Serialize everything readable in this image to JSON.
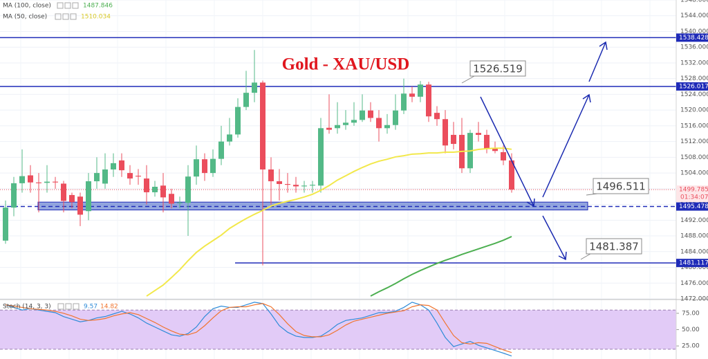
{
  "chart_data": [
    {
      "type": "candlestick",
      "title": "Gold - XAU/USD",
      "open": [
        1486.8,
        1495.2,
        1501.4,
        1503.4,
        1501.6,
        1501.5,
        1501.8,
        1501.3,
        1498.4,
        1498,
        1494.3,
        1501.9,
        1501.3,
        1504.9,
        1507.2,
        1504,
        1503.3,
        1502.6,
        1499.1,
        1500.8,
        1498.7,
        1496.3,
        1496.4,
        1503.1,
        1507.5,
        1504,
        1507.6,
        1512,
        1513.8,
        1520.8,
        1524.4,
        1527,
        1504.9,
        1501.9,
        1501.2,
        1501,
        1500.6,
        1500.8,
        1500.8,
        1515.5,
        1515.4,
        1516.2,
        1516.8,
        1517.5,
        1519.9,
        1518,
        1515.4,
        1516.2,
        1519.9,
        1524.2,
        1523.4,
        1526.5,
        1519.3,
        1517.7,
        1513.7,
        1513.7,
        1505.2,
        1514.2,
        1513.7,
        1510.2,
        1509.3,
        1507.2
      ],
      "high": [
        1497,
        1503,
        1510,
        1506,
        1504,
        1506,
        1503,
        1502,
        1499,
        1499,
        1504,
        1508,
        1509,
        1509,
        1509,
        1506,
        1505,
        1506,
        1502,
        1504,
        1500,
        1498,
        1506,
        1511,
        1509,
        1510,
        1516,
        1518,
        1523,
        1530,
        1535.3,
        1527.5,
        1508,
        1505,
        1504,
        1503,
        1502,
        1502,
        1518,
        1524,
        1522,
        1520,
        1522,
        1524,
        1522,
        1520,
        1519,
        1524,
        1528,
        1526,
        1527.4,
        1527.2,
        1521,
        1520,
        1517,
        1518,
        1515,
        1517,
        1515,
        1512,
        1511,
        1509
      ],
      "low": [
        1486,
        1493,
        1499,
        1499,
        1494,
        1499,
        1500,
        1494,
        1495,
        1490.5,
        1492,
        1500,
        1500,
        1503,
        1503,
        1501,
        1501,
        1496,
        1498,
        1494,
        1495,
        1495,
        1488,
        1501,
        1502,
        1503,
        1506,
        1511,
        1513,
        1520,
        1522,
        1480.5,
        1496,
        1497,
        1499,
        1499,
        1499,
        1499,
        1499,
        1514,
        1514,
        1515,
        1516,
        1517,
        1517,
        1512,
        1514,
        1515,
        1519,
        1522,
        1522,
        1517,
        1516,
        1509,
        1510,
        1504,
        1504,
        1512,
        1509,
        1509,
        1506,
        1499
      ],
      "close": [
        1495.2,
        1501.4,
        1503.2,
        1501.6,
        1501.4,
        1501.8,
        1501.6,
        1496.9,
        1496.6,
        1493.4,
        1501.9,
        1504,
        1504.9,
        1506.5,
        1504.7,
        1502.6,
        1503.1,
        1499.1,
        1500.5,
        1497.8,
        1496.2,
        1496.5,
        1503.1,
        1507.5,
        1504,
        1507.6,
        1512,
        1513.8,
        1520.8,
        1524.4,
        1527,
        1504.9,
        1501.9,
        1501.2,
        1501,
        1500.6,
        1500.8,
        1501,
        1515.4,
        1515,
        1516.2,
        1516.8,
        1517.5,
        1519.9,
        1518,
        1515.4,
        1516.2,
        1519.9,
        1524.2,
        1523.4,
        1526.5,
        1518.4,
        1517.7,
        1511,
        1511.4,
        1505.2,
        1514.2,
        1513.7,
        1510.2,
        1509.6,
        1507.2,
        1499.8
      ],
      "up_color": "#53b987",
      "down_color": "#eb4d5c",
      "series": [
        {
          "name": "MA (100, close)",
          "color": "#4caf50",
          "values": [
            null,
            null,
            null,
            null,
            null,
            null,
            null,
            null,
            null,
            null,
            null,
            null,
            null,
            null,
            null,
            null,
            null,
            null,
            null,
            null,
            null,
            null,
            null,
            null,
            null,
            null,
            null,
            null,
            null,
            null,
            null,
            null,
            null,
            null,
            null,
            null,
            null,
            null,
            null,
            null,
            null,
            null,
            null,
            null,
            1472.7,
            1473.8,
            1474.8,
            1475.9,
            1477.1,
            1478.2,
            1479.2,
            1480.1,
            1481,
            1481.8,
            1482.5,
            1483.3,
            1484,
            1484.7,
            1485.4,
            1486.1,
            1486.9,
            1487.846
          ]
        },
        {
          "name": "MA (50, close)",
          "color": "#f2e84b",
          "values": [
            null,
            null,
            null,
            null,
            null,
            null,
            null,
            null,
            null,
            null,
            null,
            null,
            null,
            null,
            null,
            null,
            null,
            1472.7,
            1474.1,
            1475.5,
            1477.4,
            1479.4,
            1481.7,
            1483.8,
            1485.4,
            1486.8,
            1488.2,
            1489.9,
            1491.2,
            1492.4,
            1493.5,
            1494.5,
            1495.6,
            1496.3,
            1496.8,
            1497.3,
            1497.9,
            1498.6,
            1499.6,
            1500.8,
            1502.2,
            1503.3,
            1504.4,
            1505.4,
            1506.3,
            1507,
            1507.5,
            1508.1,
            1508.4,
            1508.8,
            1508.9,
            1509.1,
            1509.1,
            1509.3,
            1509.3,
            1509.5,
            1509.6,
            1510,
            1510.2,
            1510.3,
            1510.3,
            1510.034
          ]
        }
      ],
      "ylim": [
        1472,
        1548
      ],
      "yticks": [
        {
          "value": 1472,
          "label": "1472.000"
        },
        {
          "value": 1476,
          "label": "1476.000"
        },
        {
          "value": 1480,
          "label": "1480.000"
        },
        {
          "value": 1484,
          "label": "1484.000"
        },
        {
          "value": 1488,
          "label": "1488.000"
        },
        {
          "value": 1492,
          "label": "1492.000"
        },
        {
          "value": 1496,
          "label": "1496.000"
        },
        {
          "value": 1500,
          "label": "1500.000"
        },
        {
          "value": 1504,
          "label": "1504.000"
        },
        {
          "value": 1508,
          "label": "1508.000"
        },
        {
          "value": 1512,
          "label": "1512.000"
        },
        {
          "value": 1516,
          "label": "1516.000"
        },
        {
          "value": 1520,
          "label": "1520.000"
        },
        {
          "value": 1524,
          "label": "1524.000"
        },
        {
          "value": 1528,
          "label": "1528.000"
        },
        {
          "value": 1532,
          "label": "1532.000"
        },
        {
          "value": 1536,
          "label": "1536.000"
        },
        {
          "value": 1540,
          "label": "1540.000"
        },
        {
          "value": 1544,
          "label": "1544.000"
        },
        {
          "value": 1548,
          "label": "1548.000"
        }
      ],
      "grid": true,
      "levels": [
        {
          "value": 1538.428,
          "color": "#1f2bb8",
          "style": "solid"
        },
        {
          "value": 1526.017,
          "color": "#1f2bb8",
          "style": "solid"
        },
        {
          "value": 1495.478,
          "color": "#1f2bb8",
          "style": "dashed"
        },
        {
          "value": 1481.117,
          "color": "#1f2bb8",
          "style": "solid"
        }
      ],
      "last_price": 1499.785,
      "last_price_color": "#eb4d5c",
      "countdown": "01:34:07",
      "zone": [
        1494.6,
        1496.6
      ],
      "zone_color": "#3d5fc4",
      "callouts": [
        1526.519,
        1496.511,
        1481.387
      ]
    },
    {
      "type": "line",
      "title": "Stoch (14, 3, 3)",
      "series": [
        {
          "color": "#2e8bd8",
          "values": [
            88,
            84,
            80,
            82,
            80,
            78,
            76,
            70,
            66,
            62,
            64,
            68,
            70,
            74,
            78,
            74,
            68,
            60,
            54,
            48,
            42,
            40,
            44,
            54,
            70,
            82,
            86,
            84,
            84,
            88,
            92,
            90,
            74,
            56,
            46,
            40,
            38,
            38,
            40,
            48,
            58,
            64,
            66,
            68,
            72,
            76,
            76,
            78,
            84,
            92,
            88,
            80,
            60,
            38,
            24,
            28,
            32,
            26,
            22,
            18,
            14,
            9.57
          ]
        },
        {
          "color": "#f0742e",
          "values": [
            88,
            86,
            84,
            82,
            81,
            80,
            78,
            75,
            71,
            66,
            64,
            65,
            67,
            71,
            74,
            76,
            73,
            67,
            61,
            54,
            48,
            43,
            42,
            46,
            56,
            68,
            79,
            84,
            85,
            85,
            88,
            90,
            85,
            73,
            59,
            47,
            41,
            39,
            39,
            42,
            49,
            57,
            63,
            66,
            69,
            72,
            75,
            77,
            79,
            85,
            88,
            87,
            80,
            60,
            41,
            30,
            28,
            30,
            29,
            24,
            19,
            14.82
          ]
        }
      ],
      "ylim": [
        5,
        94
      ],
      "yticks": [
        {
          "value": 75,
          "label": "75.00"
        },
        {
          "value": 50,
          "label": "50.00"
        },
        {
          "value": 25,
          "label": "25.00"
        }
      ],
      "band": [
        20,
        80
      ],
      "band_color": "#e2cbf7"
    }
  ]
}
